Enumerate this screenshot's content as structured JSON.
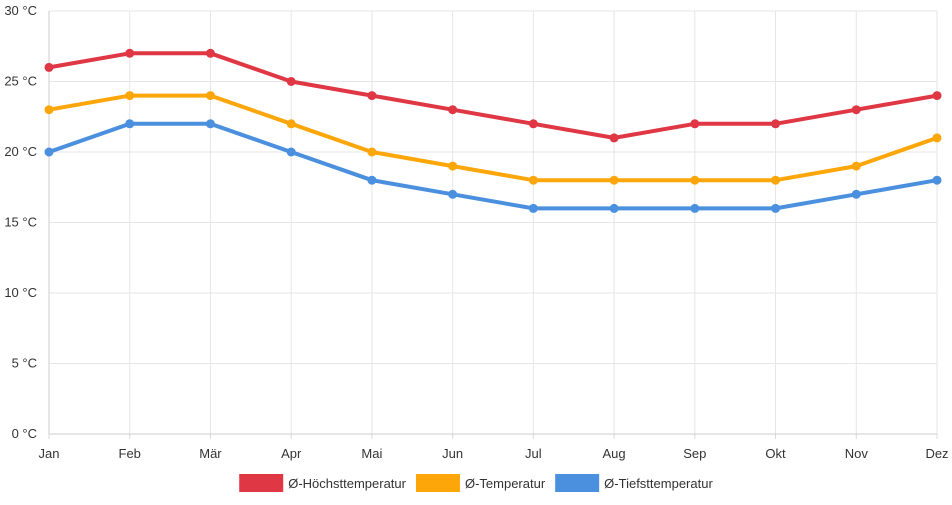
{
  "chart_data": {
    "type": "line",
    "categories": [
      "Jan",
      "Feb",
      "Mär",
      "Apr",
      "Mai",
      "Jun",
      "Jul",
      "Aug",
      "Sep",
      "Okt",
      "Nov",
      "Dez"
    ],
    "y_ticks": [
      "0 °C",
      "5 °C",
      "10 °C",
      "15 °C",
      "20 °C",
      "25 °C",
      "30 °C"
    ],
    "ylim": [
      0,
      30
    ],
    "ylabel_unit": "°C",
    "grid": true,
    "legend_position": "bottom",
    "series": [
      {
        "name": "Ø-Höchsttemperatur",
        "color": "#e03744",
        "values": [
          26,
          27,
          27,
          25,
          24,
          23,
          22,
          21,
          22,
          22,
          23,
          24
        ]
      },
      {
        "name": "Ø-Temperatur",
        "color": "#fca60a",
        "values": [
          23,
          24,
          24,
          22,
          20,
          19,
          18,
          18,
          18,
          18,
          19,
          21
        ]
      },
      {
        "name": "Ø-Tiefsttemperatur",
        "color": "#4a90de",
        "values": [
          20,
          22,
          22,
          20,
          18,
          17,
          16,
          16,
          16,
          16,
          17,
          18
        ]
      }
    ]
  }
}
